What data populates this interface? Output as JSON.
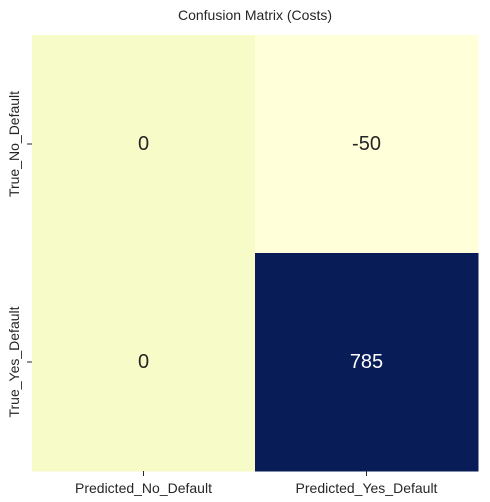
{
  "chart_data": {
    "type": "heatmap",
    "title": "Confusion Matrix (Costs)",
    "x_categories": [
      "Predicted_No_Default",
      "Predicted_Yes_Default"
    ],
    "y_categories": [
      "True_No_Default",
      "True_Yes_Default"
    ],
    "values": [
      [
        0,
        -50
      ],
      [
        0,
        785
      ]
    ],
    "colormap": "YlGnBu",
    "colorbar": false,
    "cell_colors": [
      [
        "#f6fbc8",
        "#ffffd9"
      ],
      [
        "#f6fbc8",
        "#081d58"
      ]
    ],
    "cell_text_colors": [
      [
        "#262626",
        "#262626"
      ],
      [
        "#262626",
        "#ffffff"
      ]
    ],
    "grid": false
  }
}
